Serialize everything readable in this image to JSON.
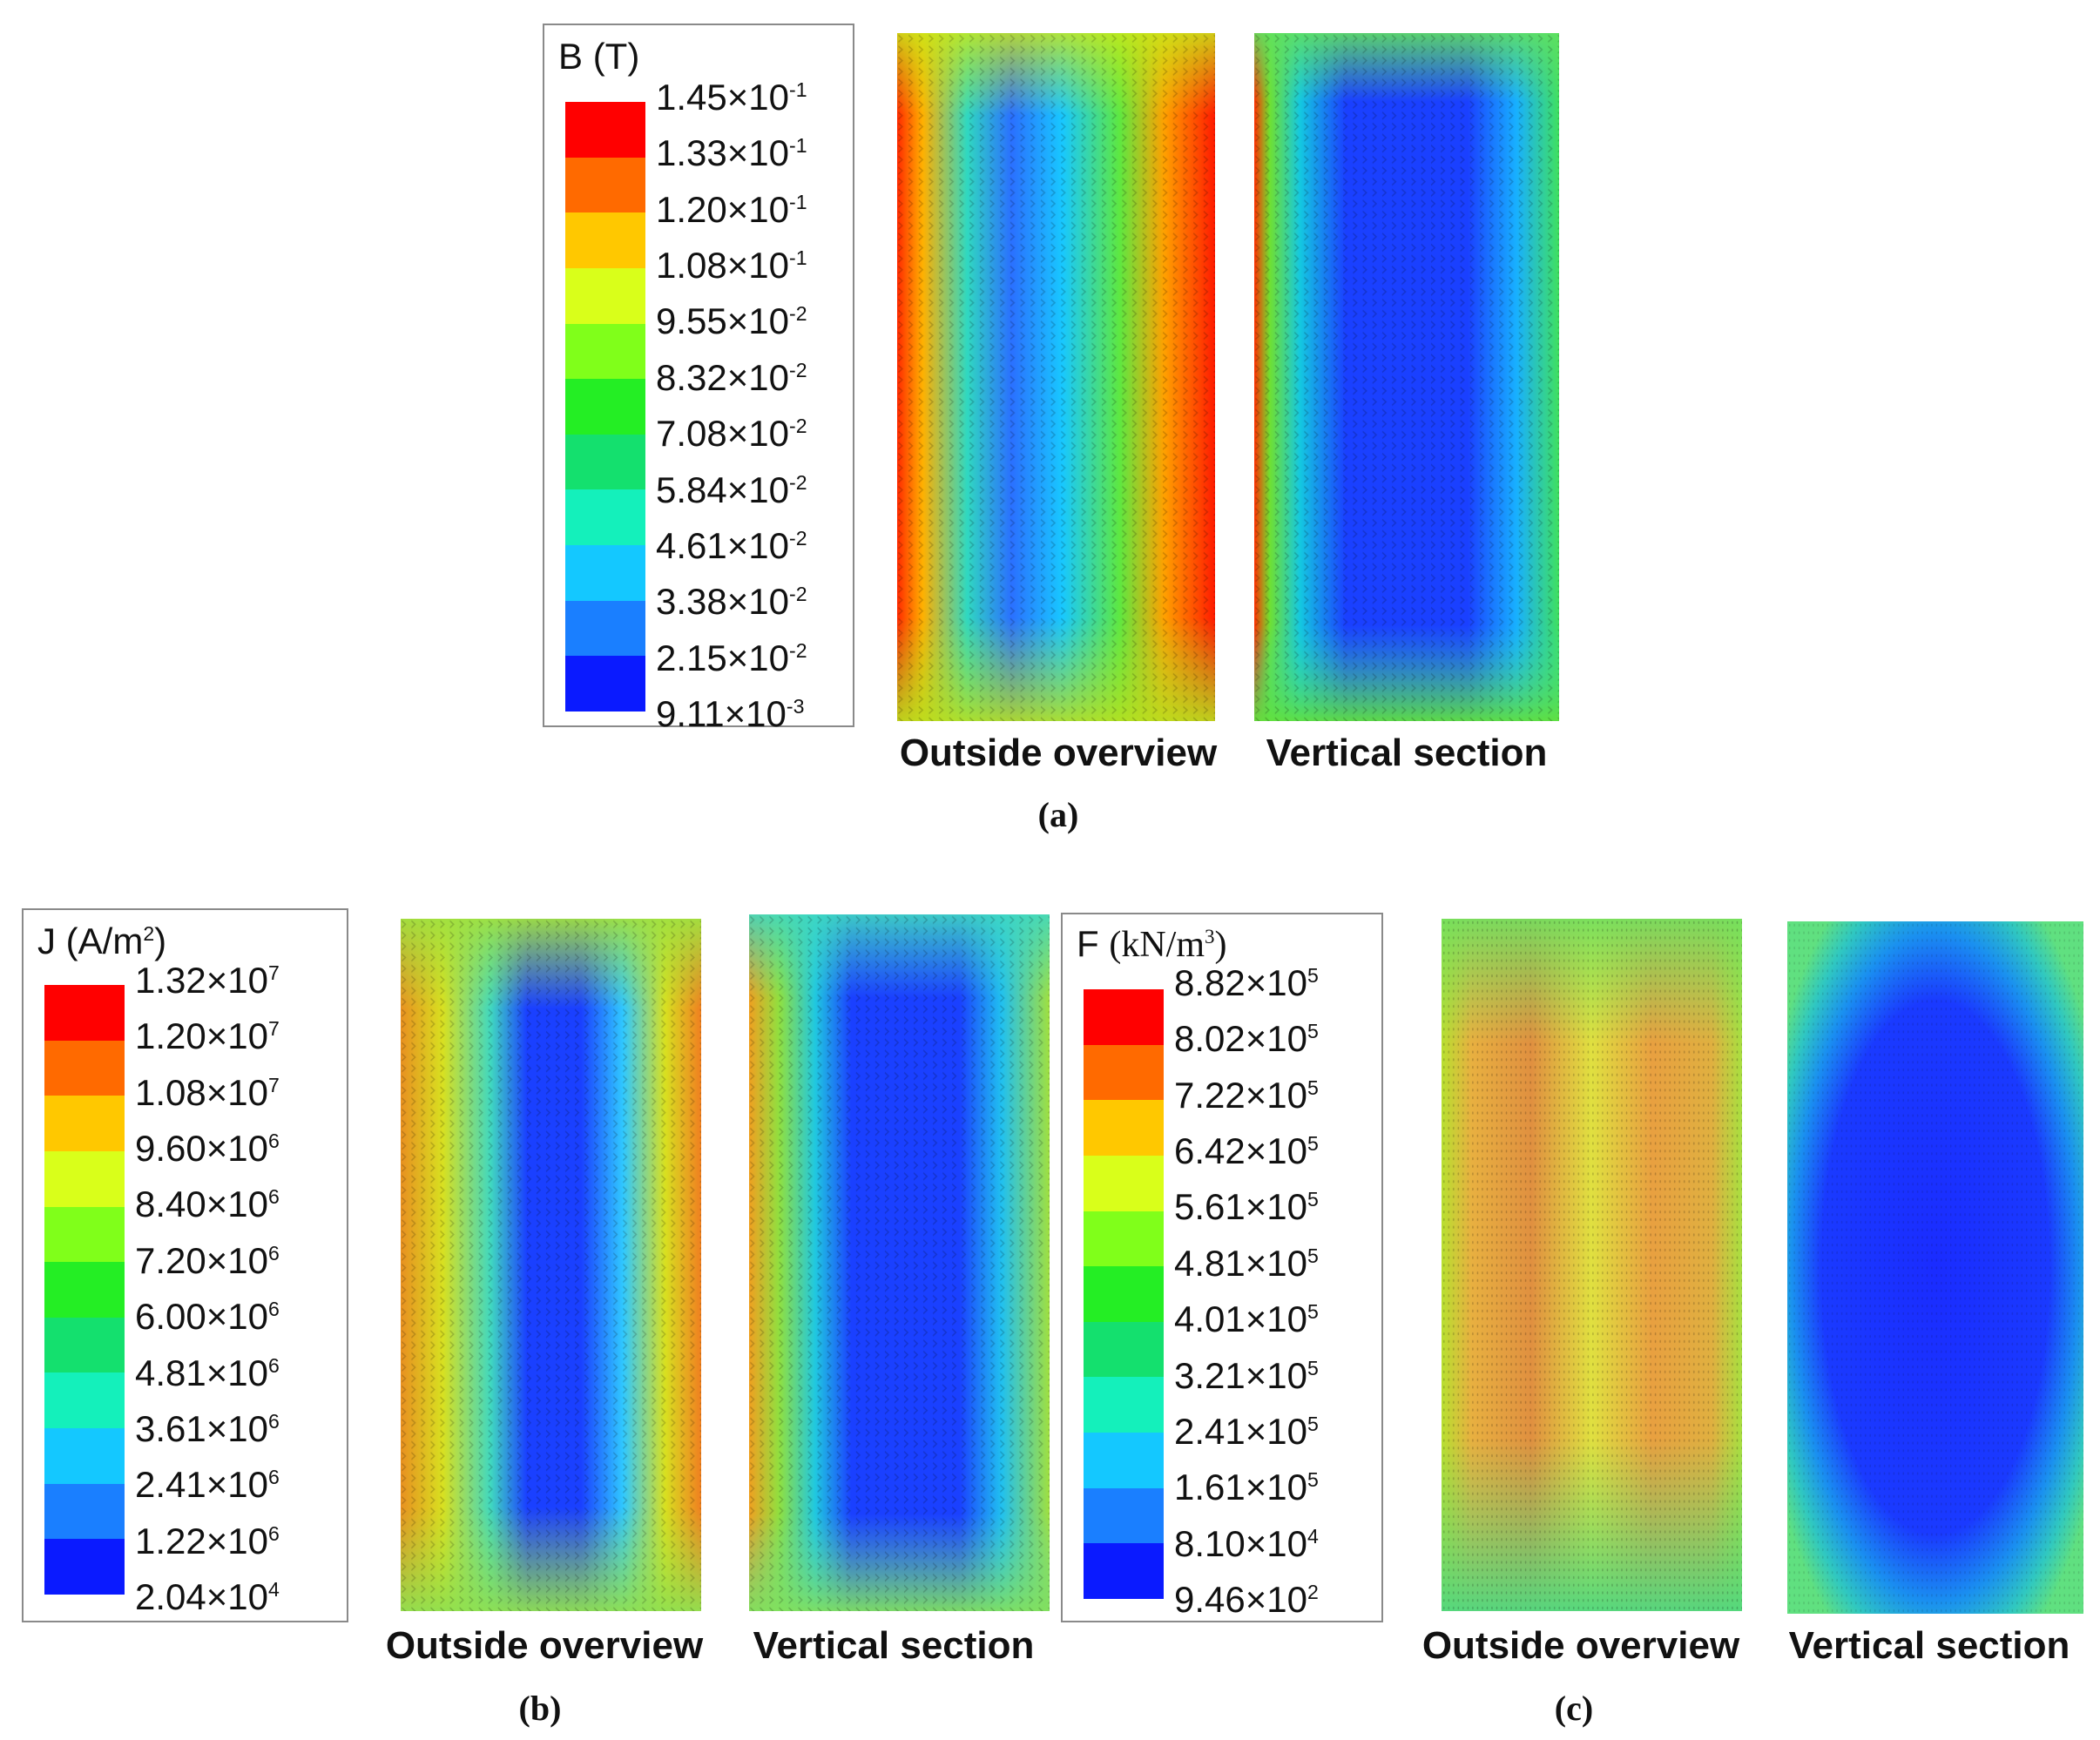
{
  "colorscale": [
    "#ff0000",
    "#ff6a00",
    "#ffc800",
    "#d9ff1a",
    "#80ff1a",
    "#24ee24",
    "#14e06e",
    "#14f0bb",
    "#14c8ff",
    "#1a7fff",
    "#0a1aff"
  ],
  "panels": [
    {
      "id": "a",
      "caption": "(a)",
      "legend": {
        "quantity": "B",
        "unit": "(T)",
        "unit_power": "",
        "unit_suffix": "",
        "ticks": [
          {
            "mantissa": "1.45×10",
            "exponent": "-1"
          },
          {
            "mantissa": "1.33×10",
            "exponent": "-1"
          },
          {
            "mantissa": "1.20×10",
            "exponent": "-1"
          },
          {
            "mantissa": "1.08×10",
            "exponent": "-1"
          },
          {
            "mantissa": "9.55×10",
            "exponent": "-2"
          },
          {
            "mantissa": "8.32×10",
            "exponent": "-2"
          },
          {
            "mantissa": "7.08×10",
            "exponent": "-2"
          },
          {
            "mantissa": "5.84×10",
            "exponent": "-2"
          },
          {
            "mantissa": "4.61×10",
            "exponent": "-2"
          },
          {
            "mantissa": "3.38×10",
            "exponent": "-2"
          },
          {
            "mantissa": "2.15×10",
            "exponent": "-2"
          },
          {
            "mantissa": "9.11×10",
            "exponent": "-3"
          }
        ]
      },
      "views": [
        "Outside overview",
        "Vertical section"
      ]
    },
    {
      "id": "b",
      "caption": "(b)",
      "legend": {
        "quantity": "J",
        "unit": "(A/m",
        "unit_power": "2",
        "unit_suffix": ")",
        "ticks": [
          {
            "mantissa": "1.32×10",
            "exponent": "7"
          },
          {
            "mantissa": "1.20×10",
            "exponent": "7"
          },
          {
            "mantissa": "1.08×10",
            "exponent": "7"
          },
          {
            "mantissa": "9.60×10",
            "exponent": "6"
          },
          {
            "mantissa": "8.40×10",
            "exponent": "6"
          },
          {
            "mantissa": "7.20×10",
            "exponent": "6"
          },
          {
            "mantissa": "6.00×10",
            "exponent": "6"
          },
          {
            "mantissa": "4.81×10",
            "exponent": "6"
          },
          {
            "mantissa": "3.61×10",
            "exponent": "6"
          },
          {
            "mantissa": "2.41×10",
            "exponent": "6"
          },
          {
            "mantissa": "1.22×10",
            "exponent": "6"
          },
          {
            "mantissa": "2.04×10",
            "exponent": "4"
          }
        ]
      },
      "views": [
        "Outside overview",
        "Vertical section"
      ]
    },
    {
      "id": "c",
      "caption": "(c)",
      "legend": {
        "quantity": "F",
        "unit": "(kN/m",
        "unit_power": "3",
        "unit_suffix": ")",
        "ticks": [
          {
            "mantissa": "8.82×10",
            "exponent": "5"
          },
          {
            "mantissa": "8.02×10",
            "exponent": "5"
          },
          {
            "mantissa": "7.22×10",
            "exponent": "5"
          },
          {
            "mantissa": "6.42×10",
            "exponent": "5"
          },
          {
            "mantissa": "5.61×10",
            "exponent": "5"
          },
          {
            "mantissa": "4.81×10",
            "exponent": "5"
          },
          {
            "mantissa": "4.01×10",
            "exponent": "5"
          },
          {
            "mantissa": "3.21×10",
            "exponent": "5"
          },
          {
            "mantissa": "2.41×10",
            "exponent": "5"
          },
          {
            "mantissa": "1.61×10",
            "exponent": "5"
          },
          {
            "mantissa": "8.10×10",
            "exponent": "4"
          },
          {
            "mantissa": "9.46×10",
            "exponent": "2"
          }
        ]
      },
      "views": [
        "Outside overview",
        "Vertical section"
      ]
    }
  ]
}
